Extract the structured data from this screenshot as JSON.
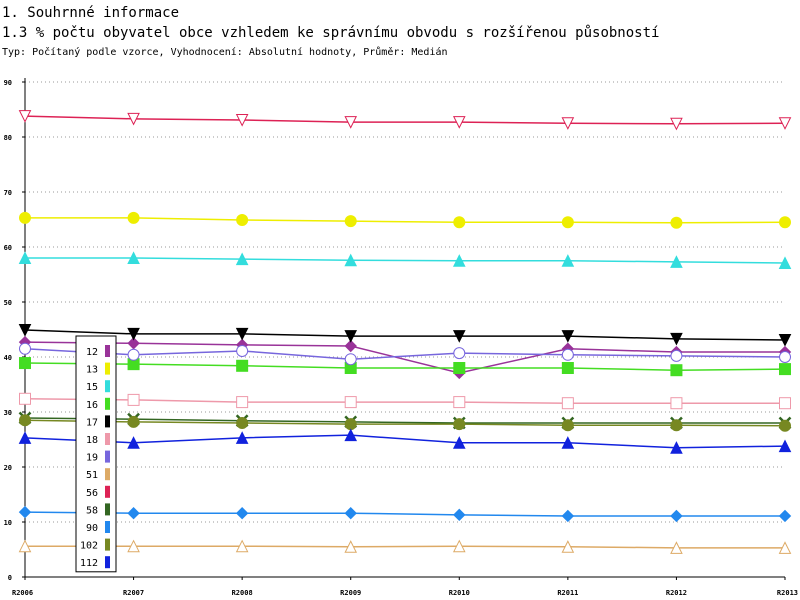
{
  "header": {
    "section": "1. Souhrnné informace",
    "title": "1.3 % počtu obyvatel obce vzhledem ke správnímu obvodu s rozšířenou působností",
    "subtitle": "Typ: Počítaný podle vzorce, Vyhodnocení: Absolutní hodnoty, Průměr: Medián"
  },
  "chart_data": {
    "type": "line",
    "categories": [
      "R2006",
      "R2007",
      "R2008",
      "R2009",
      "R2010",
      "R2011",
      "R2012",
      "R2013"
    ],
    "ylim": [
      0,
      90
    ],
    "yticks": [
      0,
      10,
      20,
      30,
      40,
      50,
      60,
      70,
      80,
      90
    ],
    "grid": true,
    "series": [
      {
        "name": "12",
        "color": "#993399",
        "marker": "diamond",
        "filled": true,
        "values": [
          42.7,
          42.5,
          42.2,
          42.0,
          37.1,
          41.5,
          40.9,
          40.9
        ]
      },
      {
        "name": "13",
        "color": "#eeee00",
        "marker": "circle",
        "filled": true,
        "values": [
          65.3,
          65.3,
          64.9,
          64.7,
          64.5,
          64.5,
          64.4,
          64.5
        ]
      },
      {
        "name": "15",
        "color": "#33dddd",
        "marker": "triangle-up",
        "filled": true,
        "values": [
          58.0,
          58.0,
          57.8,
          57.6,
          57.5,
          57.5,
          57.3,
          57.1
        ]
      },
      {
        "name": "16",
        "color": "#44dd22",
        "marker": "square",
        "filled": true,
        "values": [
          38.9,
          38.7,
          38.4,
          38.0,
          38.0,
          38.0,
          37.6,
          37.8
        ]
      },
      {
        "name": "17",
        "color": "#000000",
        "marker": "triangle-down",
        "filled": true,
        "values": [
          44.9,
          44.2,
          44.2,
          43.8,
          43.8,
          43.8,
          43.3,
          43.1
        ]
      },
      {
        "name": "18",
        "color": "#ee99aa",
        "marker": "square",
        "filled": false,
        "values": [
          32.4,
          32.2,
          31.8,
          31.8,
          31.8,
          31.6,
          31.6,
          31.6
        ]
      },
      {
        "name": "19",
        "color": "#7766dd",
        "marker": "circle",
        "filled": false,
        "values": [
          41.5,
          40.4,
          41.1,
          39.6,
          40.7,
          40.4,
          40.2,
          40.0
        ]
      },
      {
        "name": "51",
        "color": "#ddaa66",
        "marker": "triangle-up",
        "filled": false,
        "values": [
          5.6,
          5.6,
          5.6,
          5.5,
          5.6,
          5.5,
          5.3,
          5.3
        ]
      },
      {
        "name": "56",
        "color": "#dd2255",
        "marker": "triangle-down",
        "filled": false,
        "values": [
          83.8,
          83.3,
          83.1,
          82.7,
          82.7,
          82.5,
          82.4,
          82.5
        ]
      },
      {
        "name": "58",
        "color": "#336622",
        "marker": "x",
        "filled": true,
        "values": [
          28.9,
          28.7,
          28.4,
          28.2,
          28.0,
          28.0,
          28.0,
          28.0
        ]
      },
      {
        "name": "90",
        "color": "#2288ee",
        "marker": "diamond",
        "filled": true,
        "values": [
          11.8,
          11.6,
          11.6,
          11.6,
          11.3,
          11.1,
          11.1,
          11.1
        ]
      },
      {
        "name": "102",
        "color": "#778822",
        "marker": "circle",
        "filled": true,
        "values": [
          28.5,
          28.2,
          28.0,
          27.8,
          27.8,
          27.6,
          27.6,
          27.5
        ]
      },
      {
        "name": "112",
        "color": "#1122dd",
        "marker": "triangle-up",
        "filled": true,
        "values": [
          25.3,
          24.4,
          25.3,
          25.8,
          24.4,
          24.4,
          23.5,
          23.8
        ]
      }
    ]
  }
}
